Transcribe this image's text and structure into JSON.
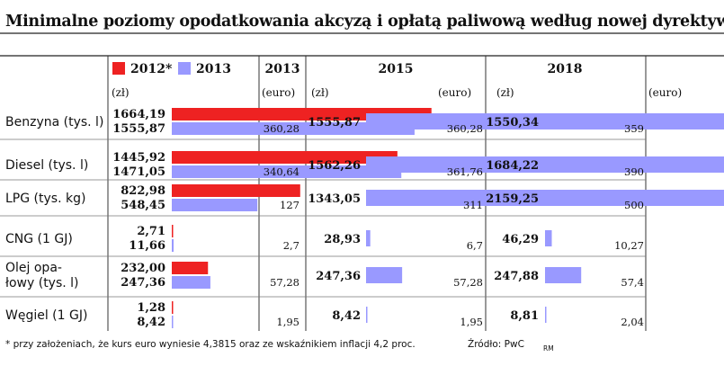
{
  "title": "Minimalne poziomy opodatkowania akcyzą i opłatą paliwową według nowej dyrektywy",
  "chart_data": {
    "type": "bar",
    "title": "Minimalne poziomy opodatkowania akcyzą i opłatą paliwową według nowej dyrektywy",
    "categories": [
      [
        "Benzyna (tys. l)"
      ],
      [
        "Diesel  (tys. l)"
      ],
      [
        "LPG (tys. kg)"
      ],
      [
        "CNG (1 GJ)"
      ],
      [
        "Olej opa-",
        "łowy (tys. l)"
      ],
      [
        "Węgiel (1 GJ)"
      ]
    ],
    "legend": [
      {
        "name": "2012*",
        "color": "#ee2222"
      },
      {
        "name": "2013",
        "color": "#9999ff"
      }
    ],
    "unit_pln": "(zł)",
    "unit_eur": "(euro)",
    "panels": [
      {
        "header": "2013",
        "series": [
          {
            "name": "2012*",
            "color": "#ee2222",
            "values": [
              1664.19,
              1445.92,
              822.98,
              2.71,
              232.0,
              1.28
            ],
            "labels": [
              "1664,19",
              "1445,92",
              "822,98",
              "2,71",
              "232,00",
              "1,28"
            ]
          },
          {
            "name": "2013",
            "color": "#9999ff",
            "values": [
              1555.87,
              1471.05,
              548.45,
              11.66,
              247.36,
              8.42
            ],
            "labels": [
              "1555,87",
              "1471,05",
              "548,45",
              "11,66",
              "247,36",
              "8,42"
            ]
          }
        ],
        "euro": [
          "360,28",
          "340,64",
          "127",
          "2,7",
          "57,28",
          "1,95"
        ]
      },
      {
        "header": "2015",
        "series": [
          {
            "name": "2015",
            "color": "#9999ff",
            "values": [
              1555.87,
              1562.26,
              1343.05,
              28.93,
              247.36,
              8.42
            ],
            "labels": [
              "1555,87",
              "1562,26",
              "1343,05",
              "28,93",
              "247,36",
              "8,42"
            ]
          }
        ],
        "euro": [
          "360,28",
          "361,76",
          "311",
          "6,7",
          "57,28",
          "1,95"
        ]
      },
      {
        "header": "2018",
        "series": [
          {
            "name": "2018",
            "color": "#9999ff",
            "values": [
              1550.34,
              1684.22,
              2159.25,
              46.29,
              247.88,
              8.81
            ],
            "labels": [
              "1550,34",
              "1684,22",
              "2159,25",
              "46,29",
              "247,88",
              "8,81"
            ]
          }
        ],
        "euro": [
          "359",
          "390",
          "500",
          "10,27",
          "57,4",
          "2,04"
        ]
      }
    ],
    "value_axis_max": 2159.25
  },
  "footnote": "* przy założeniach, że kurs euro wyniesie 4,3815 oraz ze wskaźnikiem inflacji 4,2 proc.",
  "source": "Źródło: PwC",
  "credit": "RM"
}
